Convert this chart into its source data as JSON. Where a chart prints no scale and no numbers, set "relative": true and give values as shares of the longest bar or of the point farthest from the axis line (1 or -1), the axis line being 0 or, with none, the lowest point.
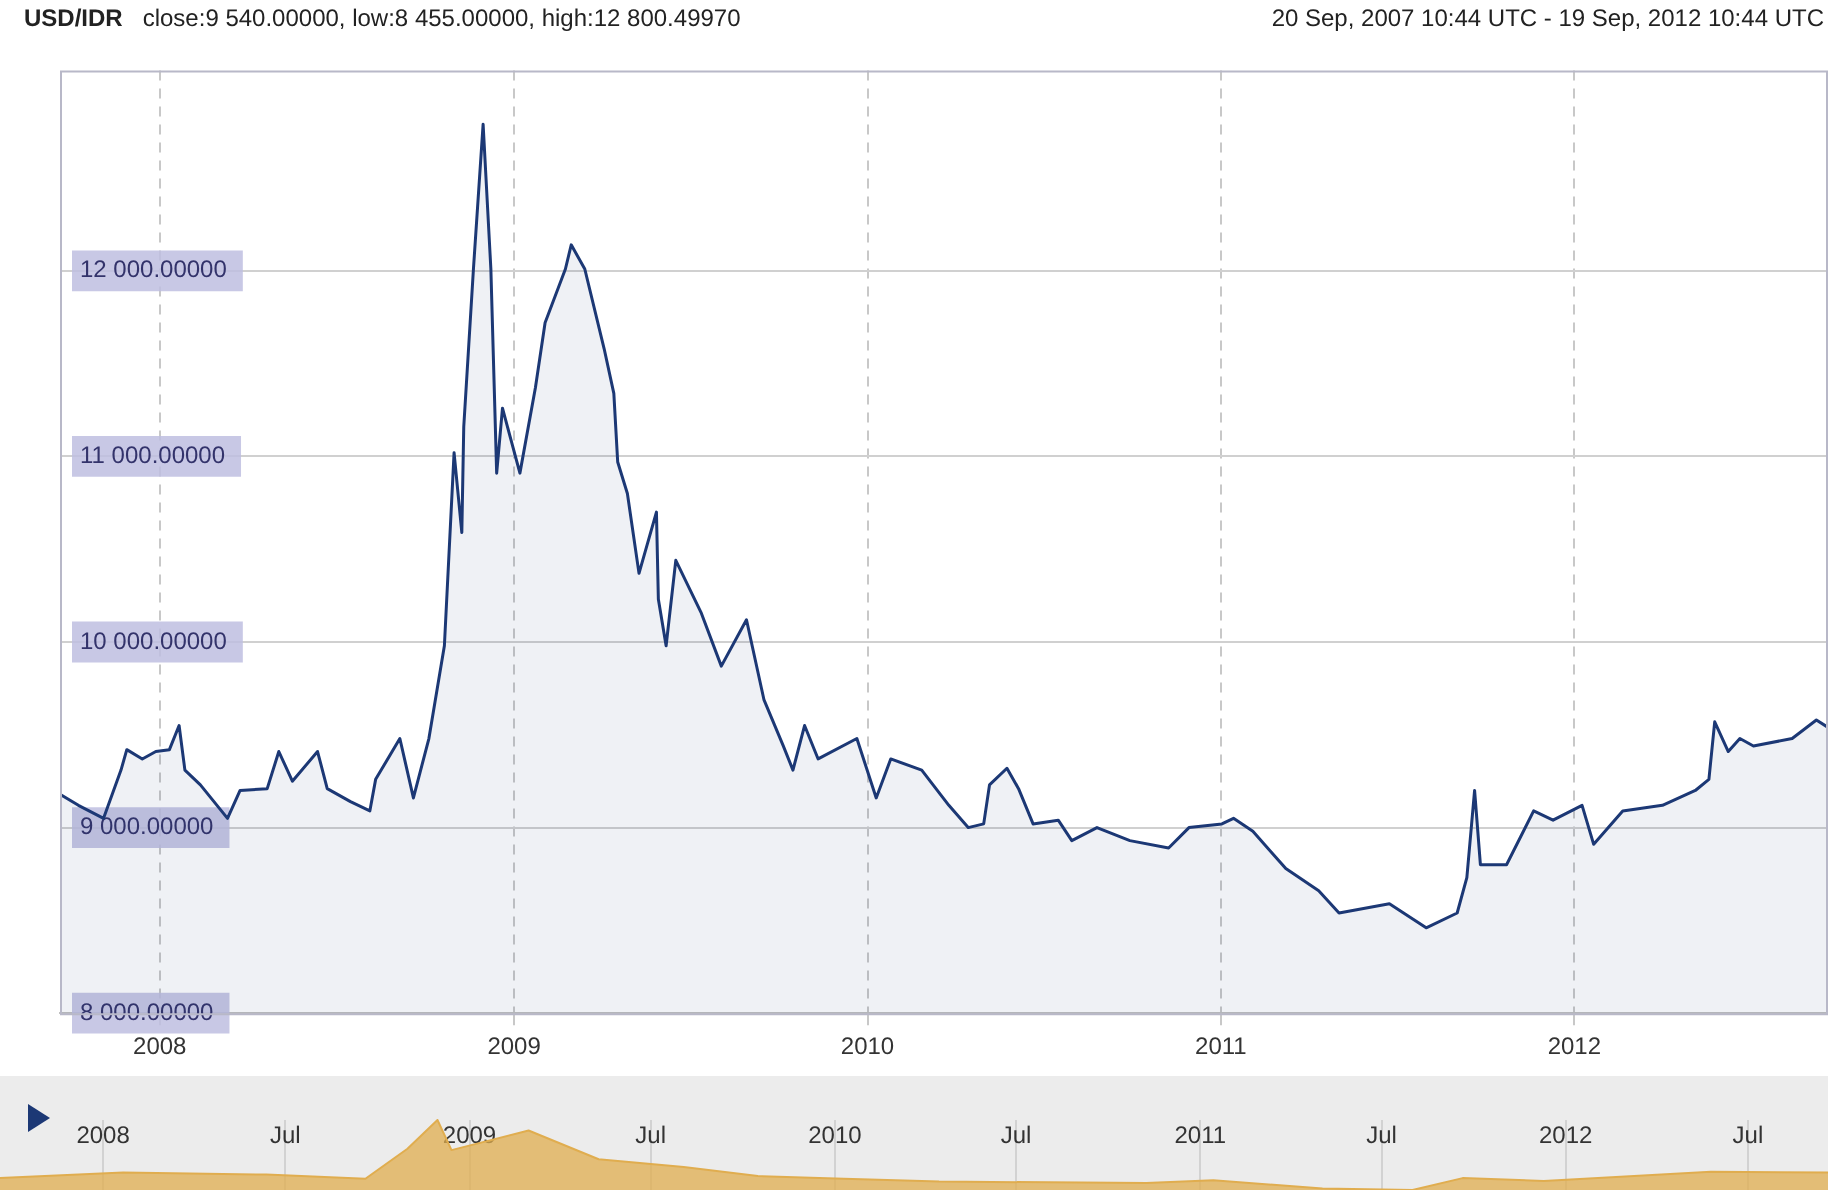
{
  "chart_data": [
    {
      "type": "area",
      "title": "USD/IDR",
      "subtitle": "close:9 540.00000, low:8 455.00000, high:12 800.49970",
      "annotations": [
        "20 Sep, 2007 10:44 UTC - 19 Sep, 2012 10:44 UTC"
      ],
      "x": [
        "2007-09-20",
        "2007-10-09",
        "2007-11-04",
        "2007-11-22",
        "2007-11-28",
        "2007-12-14",
        "2007-12-28",
        "2008-01-11",
        "2008-01-21",
        "2008-01-27",
        "2008-02-12",
        "2008-03-11",
        "2008-03-24",
        "2008-04-21",
        "2008-05-03",
        "2008-05-17",
        "2008-06-12",
        "2008-06-22",
        "2008-07-16",
        "2008-08-05",
        "2008-08-11",
        "2008-09-05",
        "2008-09-19",
        "2008-10-05",
        "2008-10-21",
        "2008-10-31",
        "2008-11-08",
        "2008-11-10",
        "2008-11-20",
        "2008-11-30",
        "2008-12-08",
        "2008-12-14",
        "2008-12-20",
        "2009-01-07",
        "2009-01-23",
        "2009-02-02",
        "2009-02-23",
        "2009-03-01",
        "2009-03-15",
        "2009-04-04",
        "2009-04-14",
        "2009-04-18",
        "2009-04-28",
        "2009-05-10",
        "2009-05-28",
        "2009-05-30",
        "2009-06-07",
        "2009-06-17",
        "2009-07-13",
        "2009-08-03",
        "2009-08-29",
        "2009-09-16",
        "2009-10-06",
        "2009-10-16",
        "2009-10-28",
        "2009-11-11",
        "2009-12-21",
        "2010-01-10",
        "2010-01-25",
        "2010-02-26",
        "2010-03-26",
        "2010-04-15",
        "2010-05-01",
        "2010-05-07",
        "2010-05-25",
        "2010-06-06",
        "2010-06-21",
        "2010-07-17",
        "2010-07-31",
        "2010-08-26",
        "2010-09-29",
        "2010-11-08",
        "2010-11-29",
        "2011-01-02",
        "2011-01-14",
        "2011-02-03",
        "2011-03-09",
        "2011-04-12",
        "2011-05-03",
        "2011-06-24",
        "2011-08-01",
        "2011-09-02",
        "2011-09-12",
        "2011-09-20",
        "2011-09-26",
        "2011-10-23",
        "2011-11-20",
        "2011-12-10",
        "2012-01-09",
        "2012-01-21",
        "2012-02-20",
        "2012-04-01",
        "2012-05-05",
        "2012-05-19",
        "2012-05-25",
        "2012-06-08",
        "2012-06-20",
        "2012-07-04",
        "2012-08-13",
        "2012-09-07",
        "2012-09-19"
      ],
      "series": [
        {
          "color": "#1c3875",
          "values": [
            9180,
            9120,
            9050,
            9310,
            9420,
            9370,
            9410,
            9420,
            9550,
            9310,
            9230,
            9050,
            9200,
            9210,
            9410,
            9250,
            9410,
            9210,
            9140,
            9090,
            9260,
            9480,
            9160,
            9480,
            9980,
            11020,
            10590,
            11160,
            12010,
            12790,
            12010,
            10910,
            11260,
            10910,
            11370,
            11720,
            12010,
            12140,
            12010,
            11580,
            11340,
            10970,
            10800,
            10370,
            10700,
            10230,
            9980,
            10440,
            10160,
            9870,
            10120,
            9690,
            9440,
            9310,
            9550,
            9370,
            9480,
            9160,
            9370,
            9310,
            9120,
            9000,
            9020,
            9230,
            9320,
            9210,
            9020,
            9040,
            8930,
            9000,
            8930,
            8890,
            9000,
            9020,
            9050,
            8980,
            8780,
            8660,
            8540,
            8590,
            8460,
            8540,
            8730,
            9200,
            8800,
            8800,
            9090,
            9040,
            9120,
            8910,
            9090,
            9120,
            9200,
            9260,
            9570,
            9410,
            9480,
            9440,
            9480,
            9580,
            9540
          ]
        }
      ],
      "xlim": [
        "2007-09-20",
        "2012-09-19"
      ],
      "ylim": [
        8000,
        13080
      ],
      "xticks": [
        {
          "value": "2008-01-01",
          "label": "2008"
        },
        {
          "value": "2009-01-01",
          "label": "2009"
        },
        {
          "value": "2010-01-01",
          "label": "2010"
        },
        {
          "value": "2011-01-01",
          "label": "2011"
        },
        {
          "value": "2012-01-01",
          "label": "2012"
        }
      ],
      "yticks": [
        {
          "value": 8000,
          "label": "8 000.00000"
        },
        {
          "value": 9000,
          "label": "9 000.00000"
        },
        {
          "value": 10000,
          "label": "10 000.00000"
        },
        {
          "value": 11000,
          "label": "11 000.00000"
        },
        {
          "value": 12000,
          "label": "12 000.00000"
        }
      ],
      "grid": true
    },
    {
      "type": "area",
      "relative": true,
      "tick_labels": "x",
      "grid": "x",
      "x": [
        "2007-09-20",
        "2008-01-21",
        "2008-06-12",
        "2008-09-19",
        "2008-10-31",
        "2008-11-30",
        "2008-12-14",
        "2009-03-01",
        "2009-05-10",
        "2009-08-03",
        "2009-10-16",
        "2010-01-10",
        "2010-04-15",
        "2010-11-08",
        "2011-01-14",
        "2011-05-03",
        "2011-08-01",
        "2011-09-20",
        "2011-12-10",
        "2012-05-25",
        "2012-09-19"
      ],
      "series": [
        {
          "color": "#e0ad4f",
          "values": [
            0.17,
            0.25,
            0.22,
            0.16,
            0.59,
            1,
            0.57,
            0.85,
            0.44,
            0.33,
            0.2,
            0.16,
            0.12,
            0.1,
            0.14,
            0.02,
            0,
            0.17,
            0.13,
            0.26,
            0.25
          ]
        }
      ],
      "xlim": [
        "2007-09-20",
        "2012-09-19"
      ],
      "xticks": [
        {
          "value": "2008-01-01",
          "label": "2008"
        },
        {
          "value": "2008-07-01",
          "label": "Jul"
        },
        {
          "value": "2009-01-01",
          "label": "2009"
        },
        {
          "value": "2009-07-01",
          "label": "Jul"
        },
        {
          "value": "2010-01-01",
          "label": "2010"
        },
        {
          "value": "2010-07-01",
          "label": "Jul"
        },
        {
          "value": "2011-01-01",
          "label": "2011"
        },
        {
          "value": "2011-07-01",
          "label": "Jul"
        },
        {
          "value": "2012-01-01",
          "label": "2012"
        },
        {
          "value": "2012-07-01",
          "label": "Jul"
        }
      ]
    }
  ]
}
